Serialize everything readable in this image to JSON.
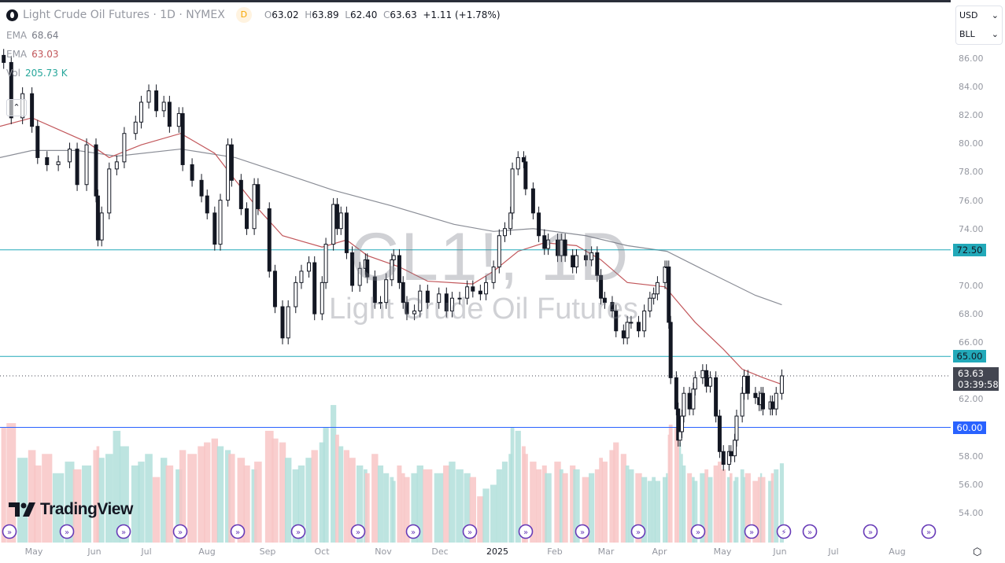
{
  "header": {
    "title": "Light Crude Oil Futures · 1D · NYMEX",
    "interval_badge": "D",
    "ohlc": {
      "o_label": "O",
      "o": "63.02",
      "h_label": "H",
      "h": "63.89",
      "l_label": "L",
      "l": "62.40",
      "c_label": "C",
      "c": "63.63",
      "change": "+1.11 (+1.78%)"
    }
  },
  "indicators": [
    {
      "label": "EMA",
      "value": "68.64",
      "color": "#787b86"
    },
    {
      "label": "EMA",
      "value": "63.03",
      "color": "#c2575b"
    },
    {
      "label": "Vol",
      "value": "205.73 K",
      "color": "#26a69a"
    }
  ],
  "collapse_icon": "chevron-up-icon",
  "watermark": {
    "symbol": "CL1!, 1D",
    "name": "Light Crude Oil Futures"
  },
  "brand": "TradingView",
  "price_axis": {
    "currency": "USD",
    "unit": "BLL",
    "ticks": [
      "86.00",
      "84.00",
      "82.00",
      "80.00",
      "78.00",
      "76.00",
      "74.00",
      "70.00",
      "68.00",
      "66.00",
      "62.00",
      "58.00",
      "56.00",
      "54.00"
    ]
  },
  "time_axis": [
    {
      "label": "May"
    },
    {
      "label": "Jun"
    },
    {
      "label": "Jul"
    },
    {
      "label": "Aug"
    },
    {
      "label": "Sep"
    },
    {
      "label": "Oct"
    },
    {
      "label": "Nov"
    },
    {
      "label": "Dec"
    },
    {
      "label": "2025",
      "bold": true
    },
    {
      "label": "Feb"
    },
    {
      "label": "Mar"
    },
    {
      "label": "Apr"
    },
    {
      "label": "May"
    },
    {
      "label": "Jun"
    },
    {
      "label": "Jul"
    },
    {
      "label": "Aug"
    }
  ],
  "last_price": {
    "value": "63.63",
    "countdown": "03:39:58"
  },
  "colors": {
    "level_teal": "#22a9b9",
    "level_blue": "#2962ff",
    "up_volume": "#b2dfdb",
    "down_volume": "#f8c6c6",
    "ema_fast": "#c2575b",
    "ema_slow": "#8a8d96"
  },
  "event_icons": [
    "split-icon",
    "split-icon",
    "split-icon",
    "split-icon",
    "split-icon",
    "split-icon",
    "split-icon",
    "split-icon",
    "split-icon",
    "split-icon",
    "split-icon",
    "split-icon",
    "split-icon",
    "split-icon",
    "lightning-icon",
    "split-icon",
    "split-icon",
    "split-icon"
  ],
  "chart_data": {
    "type": "candlestick",
    "ylim": [
      53,
      87
    ],
    "xlim": [
      "2024-04-13",
      "2025-08-31"
    ],
    "grid": false,
    "candle_fields": [
      "date",
      "close",
      "volume_k"
    ],
    "candles": [
      [
        "2024-04-15",
        85.7,
        300
      ],
      [
        "2024-04-19",
        81.8,
        310
      ],
      [
        "2024-04-25",
        83.5,
        220
      ],
      [
        "2024-04-30",
        81.2,
        240
      ],
      [
        "2024-05-03",
        79.0,
        200
      ],
      [
        "2024-05-08",
        78.5,
        230
      ],
      [
        "2024-05-14",
        78.7,
        180
      ],
      [
        "2024-05-20",
        79.6,
        210
      ],
      [
        "2024-05-24",
        77.1,
        190
      ],
      [
        "2024-05-29",
        79.9,
        200
      ],
      [
        "2024-06-03",
        76.3,
        240
      ],
      [
        "2024-06-04",
        73.2,
        250
      ],
      [
        "2024-06-06",
        75.1,
        220
      ],
      [
        "2024-06-10",
        78.2,
        230
      ],
      [
        "2024-06-14",
        78.7,
        290
      ],
      [
        "2024-06-18",
        80.7,
        250
      ],
      [
        "2024-06-24",
        81.5,
        200
      ],
      [
        "2024-06-27",
        82.9,
        210
      ],
      [
        "2024-07-01",
        83.7,
        230
      ],
      [
        "2024-07-05",
        82.3,
        170
      ],
      [
        "2024-07-09",
        82.9,
        220
      ],
      [
        "2024-07-12",
        81.2,
        200
      ],
      [
        "2024-07-17",
        82.1,
        190
      ],
      [
        "2024-07-19",
        78.5,
        240
      ],
      [
        "2024-07-24",
        77.4,
        230
      ],
      [
        "2024-07-29",
        76.3,
        250
      ],
      [
        "2024-08-01",
        75.1,
        260
      ],
      [
        "2024-08-05",
        72.9,
        270
      ],
      [
        "2024-08-08",
        76.0,
        250
      ],
      [
        "2024-08-12",
        79.9,
        240
      ],
      [
        "2024-08-14",
        77.4,
        230
      ],
      [
        "2024-08-19",
        75.4,
        220
      ],
      [
        "2024-08-22",
        74.0,
        200
      ],
      [
        "2024-08-26",
        77.1,
        190
      ],
      [
        "2024-08-28",
        75.4,
        210
      ],
      [
        "2024-09-03",
        71.0,
        290
      ],
      [
        "2024-09-06",
        68.5,
        270
      ],
      [
        "2024-09-10",
        66.3,
        260
      ],
      [
        "2024-09-13",
        68.5,
        220
      ],
      [
        "2024-09-17",
        70.2,
        190
      ],
      [
        "2024-09-20",
        71.0,
        200
      ],
      [
        "2024-09-24",
        71.6,
        220
      ],
      [
        "2024-09-27",
        68.0,
        240
      ],
      [
        "2024-10-01",
        70.2,
        260
      ],
      [
        "2024-10-03",
        72.9,
        300
      ],
      [
        "2024-10-07",
        75.7,
        357
      ],
      [
        "2024-10-09",
        74.0,
        280
      ],
      [
        "2024-10-11",
        75.1,
        250
      ],
      [
        "2024-10-14",
        72.3,
        240
      ],
      [
        "2024-10-17",
        70.0,
        220
      ],
      [
        "2024-10-21",
        71.2,
        200
      ],
      [
        "2024-10-24",
        71.8,
        190
      ],
      [
        "2024-10-25",
        70.6,
        180
      ],
      [
        "2024-10-29",
        68.8,
        230
      ],
      [
        "2024-11-01",
        68.8,
        200
      ],
      [
        "2024-11-04",
        70.4,
        180
      ],
      [
        "2024-11-07",
        71.8,
        170
      ],
      [
        "2024-11-08",
        72.1,
        160
      ],
      [
        "2024-11-11",
        70.2,
        200
      ],
      [
        "2024-11-13",
        68.8,
        180
      ],
      [
        "2024-11-15",
        68.0,
        170
      ],
      [
        "2024-11-19",
        68.2,
        180
      ],
      [
        "2024-11-22",
        69.6,
        200
      ],
      [
        "2024-11-26",
        68.8,
        190
      ],
      [
        "2024-12-02",
        69.4,
        180
      ],
      [
        "2024-12-06",
        68.2,
        200
      ],
      [
        "2024-12-09",
        69.1,
        210
      ],
      [
        "2024-12-13",
        69.1,
        190
      ],
      [
        "2024-12-17",
        69.9,
        180
      ],
      [
        "2024-12-20",
        69.6,
        170
      ],
      [
        "2024-12-24",
        69.4,
        120
      ],
      [
        "2024-12-27",
        70.2,
        140
      ],
      [
        "2024-12-31",
        71.3,
        150
      ],
      [
        "2025-01-03",
        73.5,
        190
      ],
      [
        "2025-01-06",
        74.0,
        210
      ],
      [
        "2025-01-09",
        75.1,
        230
      ],
      [
        "2025-01-10",
        78.2,
        300
      ],
      [
        "2025-01-13",
        79.0,
        290
      ],
      [
        "2025-01-16",
        78.7,
        250
      ],
      [
        "2025-01-17",
        76.8,
        230
      ],
      [
        "2025-01-21",
        75.1,
        210
      ],
      [
        "2025-01-24",
        73.5,
        190
      ],
      [
        "2025-01-27",
        72.6,
        200
      ],
      [
        "2025-01-29",
        73.2,
        180
      ],
      [
        "2025-02-03",
        72.1,
        210
      ],
      [
        "2025-02-05",
        73.2,
        190
      ],
      [
        "2025-02-07",
        72.1,
        180
      ],
      [
        "2025-02-11",
        71.3,
        200
      ],
      [
        "2025-02-13",
        72.1,
        190
      ],
      [
        "2025-02-18",
        71.8,
        170
      ],
      [
        "2025-02-21",
        72.3,
        180
      ],
      [
        "2025-02-24",
        70.7,
        190
      ],
      [
        "2025-02-26",
        69.1,
        220
      ],
      [
        "2025-02-28",
        68.8,
        210
      ],
      [
        "2025-03-04",
        68.2,
        240
      ],
      [
        "2025-03-06",
        66.8,
        260
      ],
      [
        "2025-03-10",
        66.3,
        230
      ],
      [
        "2025-03-12",
        67.4,
        200
      ],
      [
        "2025-03-14",
        67.4,
        190
      ],
      [
        "2025-03-18",
        66.8,
        180
      ],
      [
        "2025-03-21",
        68.2,
        170
      ],
      [
        "2025-03-24",
        69.1,
        160
      ],
      [
        "2025-03-26",
        69.4,
        170
      ],
      [
        "2025-03-28",
        70.2,
        160
      ],
      [
        "2025-04-01",
        71.3,
        170
      ],
      [
        "2025-04-02",
        71.3,
        180
      ],
      [
        "2025-04-03",
        67.4,
        280
      ],
      [
        "2025-04-04",
        63.5,
        306
      ],
      [
        "2025-04-07",
        61.3,
        300
      ],
      [
        "2025-04-08",
        59.1,
        280
      ],
      [
        "2025-04-09",
        59.7,
        260
      ],
      [
        "2025-04-10",
        60.8,
        230
      ],
      [
        "2025-04-11",
        62.4,
        200
      ],
      [
        "2025-04-14",
        61.3,
        180
      ],
      [
        "2025-04-16",
        62.7,
        170
      ],
      [
        "2025-04-17",
        63.5,
        160
      ],
      [
        "2025-04-21",
        64.0,
        180
      ],
      [
        "2025-04-23",
        62.9,
        190
      ],
      [
        "2025-04-25",
        63.5,
        170
      ],
      [
        "2025-04-28",
        60.8,
        200
      ],
      [
        "2025-04-30",
        58.3,
        210
      ],
      [
        "2025-05-02",
        57.4,
        190
      ],
      [
        "2025-05-05",
        58.3,
        170
      ],
      [
        "2025-05-06",
        58.0,
        180
      ],
      [
        "2025-05-08",
        59.1,
        160
      ],
      [
        "2025-05-09",
        60.8,
        170
      ],
      [
        "2025-05-12",
        62.4,
        190
      ],
      [
        "2025-05-13",
        63.6,
        170
      ],
      [
        "2025-05-15",
        62.4,
        180
      ],
      [
        "2025-05-19",
        62.1,
        160
      ],
      [
        "2025-05-21",
        61.6,
        170
      ],
      [
        "2025-05-22",
        62.4,
        180
      ],
      [
        "2025-05-23",
        61.3,
        170
      ],
      [
        "2025-05-27",
        61.8,
        160
      ],
      [
        "2025-05-28",
        61.3,
        180
      ],
      [
        "2025-05-30",
        62.4,
        190
      ],
      [
        "2025-06-02",
        63.63,
        205.73
      ]
    ],
    "ema_fast": [
      [
        "2024-04-13",
        81.2
      ],
      [
        "2024-04-30",
        81.8
      ],
      [
        "2024-05-29",
        80.1
      ],
      [
        "2024-06-10",
        79.0
      ],
      [
        "2024-06-27",
        79.9
      ],
      [
        "2024-07-18",
        80.7
      ],
      [
        "2024-08-05",
        79.3
      ],
      [
        "2024-08-16",
        77.4
      ],
      [
        "2024-08-28",
        75.4
      ],
      [
        "2024-09-10",
        73.5
      ],
      [
        "2024-10-01",
        72.7
      ],
      [
        "2024-10-14",
        73.2
      ],
      [
        "2024-10-25",
        72.1
      ],
      [
        "2024-11-11",
        71.3
      ],
      [
        "2024-11-26",
        70.3
      ],
      [
        "2024-12-20",
        70.1
      ],
      [
        "2024-12-31",
        71.0
      ],
      [
        "2025-01-13",
        72.4
      ],
      [
        "2025-01-27",
        73.0
      ],
      [
        "2025-02-13",
        72.8
      ],
      [
        "2025-02-26",
        71.8
      ],
      [
        "2025-03-12",
        70.2
      ],
      [
        "2025-04-01",
        69.9
      ],
      [
        "2025-04-08",
        68.8
      ],
      [
        "2025-04-17",
        67.4
      ],
      [
        "2025-05-02",
        65.5
      ],
      [
        "2025-05-12",
        64.1
      ],
      [
        "2025-05-23",
        63.5
      ],
      [
        "2025-06-02",
        63.03
      ]
    ],
    "ema_slow": [
      [
        "2024-04-13",
        79.0
      ],
      [
        "2024-04-30",
        79.5
      ],
      [
        "2024-05-24",
        79.5
      ],
      [
        "2024-06-14",
        79.1
      ],
      [
        "2024-07-18",
        79.6
      ],
      [
        "2024-08-16",
        79.0
      ],
      [
        "2024-09-10",
        77.9
      ],
      [
        "2024-10-07",
        76.7
      ],
      [
        "2024-11-07",
        75.6
      ],
      [
        "2024-12-10",
        74.3
      ],
      [
        "2024-12-31",
        73.8
      ],
      [
        "2025-01-21",
        74.0
      ],
      [
        "2025-02-18",
        73.5
      ],
      [
        "2025-03-12",
        72.8
      ],
      [
        "2025-04-02",
        72.4
      ],
      [
        "2025-04-23",
        71.0
      ],
      [
        "2025-05-19",
        69.3
      ],
      [
        "2025-06-02",
        68.64
      ]
    ],
    "levels": [
      {
        "price": 72.5,
        "label": "72.50",
        "color": "#22a9b9"
      },
      {
        "price": 65.0,
        "label": "65.00",
        "color": "#22a9b9"
      },
      {
        "price": 60.0,
        "label": "60.00",
        "color": "#2962ff"
      }
    ]
  }
}
